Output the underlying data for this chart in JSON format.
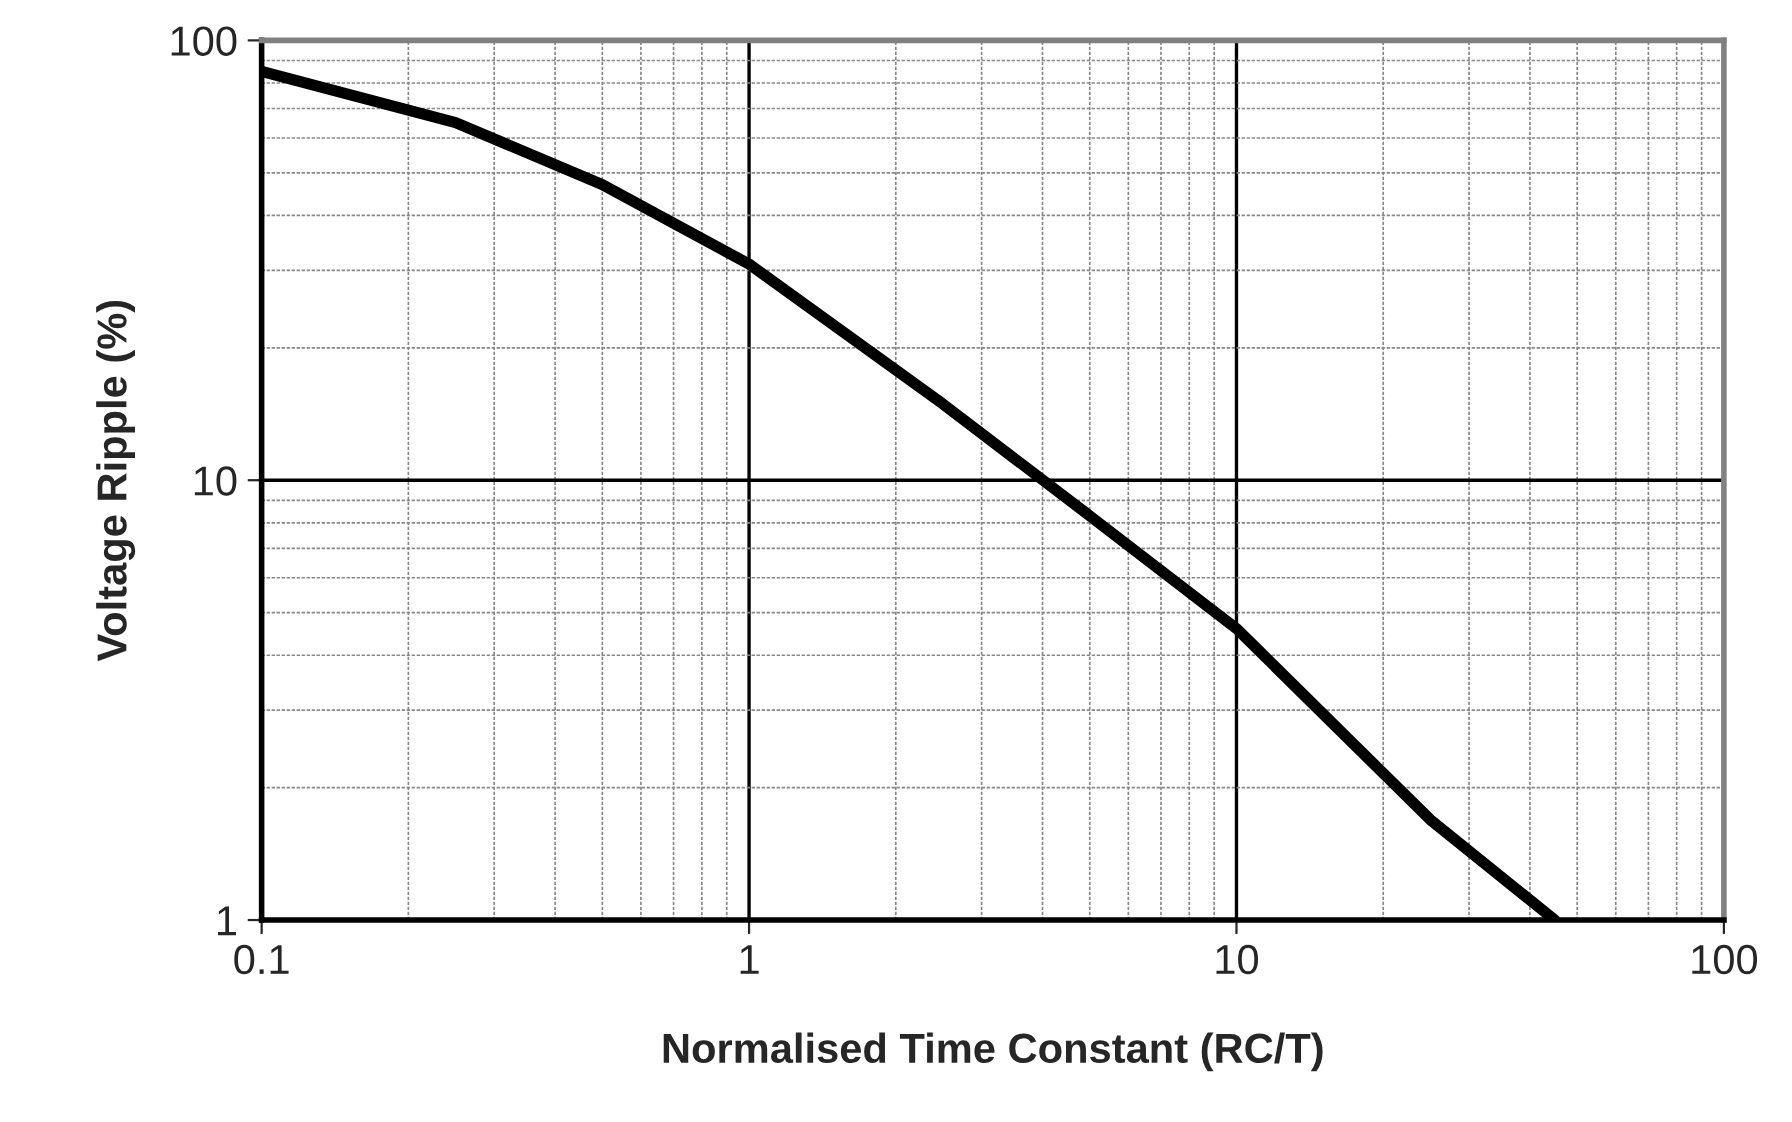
{
  "chart_data": {
    "type": "line",
    "xlabel": "Normalised Time Constant (RC/T)",
    "ylabel": "Voltage Ripple (%)",
    "log": "xy",
    "grid": true,
    "xlim": [
      0.1,
      100
    ],
    "ylim": [
      1,
      100
    ],
    "xticks": [
      0.1,
      1,
      10,
      100
    ],
    "yticks": [
      1,
      10,
      100
    ],
    "x": [
      0.1,
      0.25,
      0.5,
      1,
      2.5,
      5,
      10,
      25,
      45
    ],
    "series": [
      {
        "color": "#000000",
        "values": [
          85,
          65,
          47,
          31,
          14.9,
          8.3,
          4.6,
          1.69,
          1
        ]
      }
    ]
  }
}
